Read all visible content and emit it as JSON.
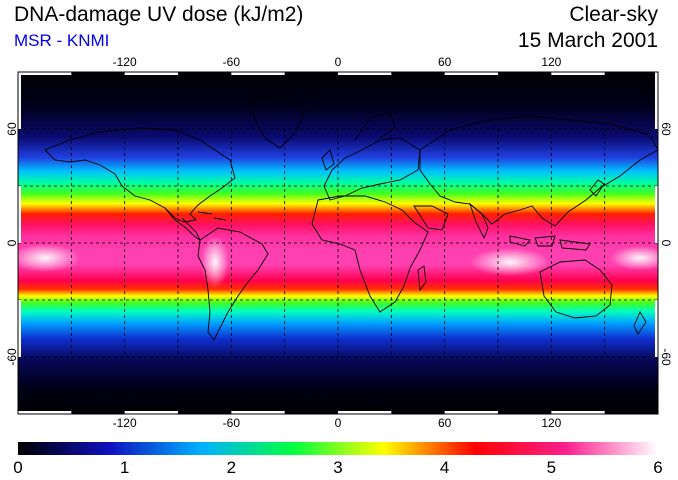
{
  "header": {
    "title": "DNA-damage UV dose (kJ/m2)",
    "source": "MSR - KNMI",
    "condition": "Clear-sky",
    "date": "15 March 2001"
  },
  "colors": {
    "source_text": "#0000ee",
    "coastline": "#000000",
    "frame_tick": "#ffffff"
  },
  "map": {
    "projection": "equirectangular",
    "lon_range": [
      -180,
      180
    ],
    "lat_range": [
      -90,
      90
    ],
    "grid": "dashed",
    "grid_lon": [
      -150,
      -120,
      -90,
      -60,
      -30,
      0,
      30,
      60,
      90,
      120,
      150
    ],
    "grid_lat": [
      -60,
      -30,
      0,
      30,
      60
    ],
    "lon_labels": [
      "-120",
      "-60",
      "0",
      "60",
      "120"
    ],
    "lat_labels": [
      "60",
      "0",
      "-60"
    ]
  },
  "colorbar": {
    "ticks": [
      "0",
      "1",
      "2",
      "3",
      "4",
      "5",
      "6"
    ],
    "range": [
      0,
      6
    ],
    "colors": [
      "#000000",
      "#1010c0",
      "#00b0ff",
      "#00ff40",
      "#ffff00",
      "#ff0000",
      "#ff2090",
      "#ffffff"
    ]
  }
}
